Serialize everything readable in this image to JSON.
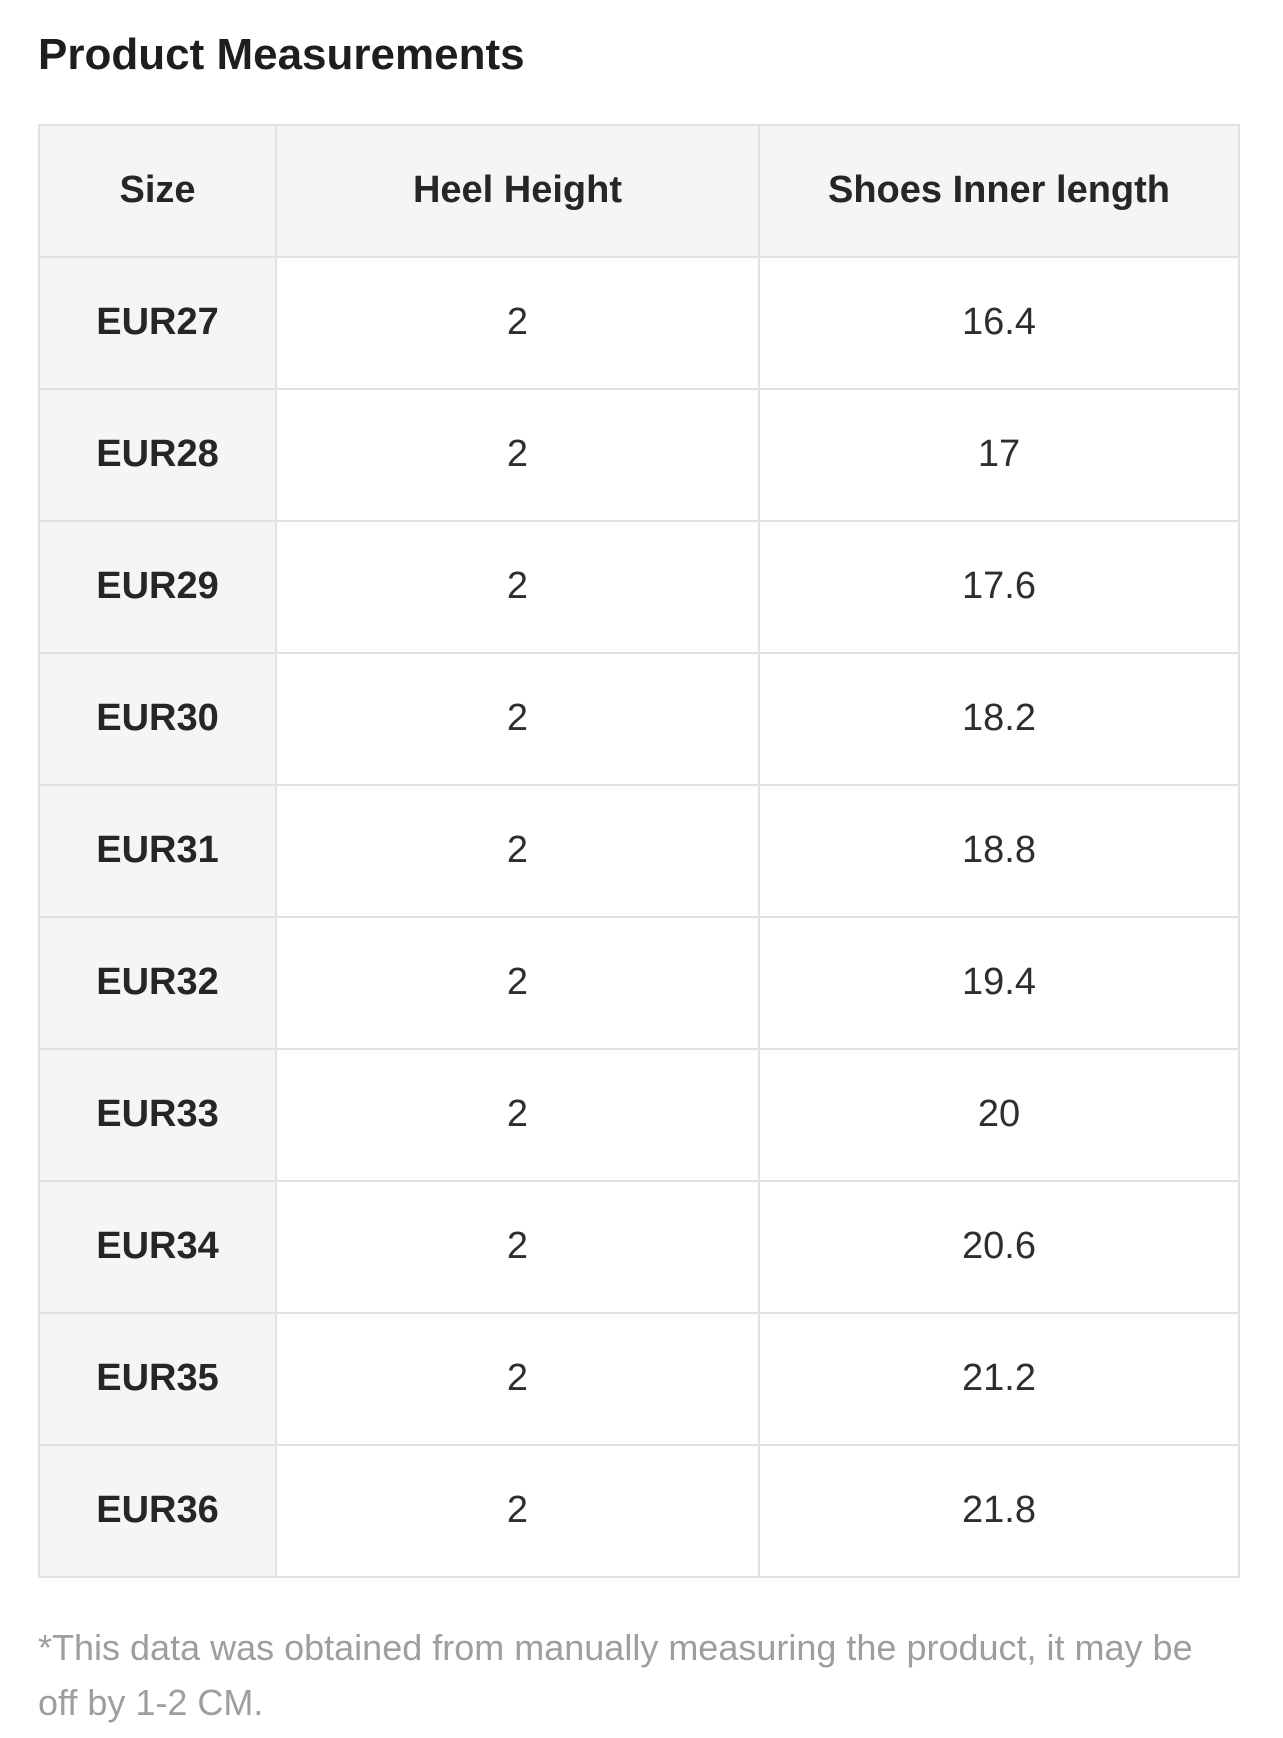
{
  "page": {
    "title": "Product Measurements",
    "footnote": "*This data was obtained from manually measuring the product, it may be off by 1-2 CM."
  },
  "measurements_table": {
    "columns": [
      "Size",
      "Heel Height",
      "Shoes Inner length"
    ],
    "rows": [
      {
        "size": "EUR27",
        "heel_height": "2",
        "inner_length": "16.4"
      },
      {
        "size": "EUR28",
        "heel_height": "2",
        "inner_length": "17"
      },
      {
        "size": "EUR29",
        "heel_height": "2",
        "inner_length": "17.6"
      },
      {
        "size": "EUR30",
        "heel_height": "2",
        "inner_length": "18.2"
      },
      {
        "size": "EUR31",
        "heel_height": "2",
        "inner_length": "18.8"
      },
      {
        "size": "EUR32",
        "heel_height": "2",
        "inner_length": "19.4"
      },
      {
        "size": "EUR33",
        "heel_height": "2",
        "inner_length": "20"
      },
      {
        "size": "EUR34",
        "heel_height": "2",
        "inner_length": "20.6"
      },
      {
        "size": "EUR35",
        "heel_height": "2",
        "inner_length": "21.2"
      },
      {
        "size": "EUR36",
        "heel_height": "2",
        "inner_length": "21.8"
      }
    ]
  },
  "colors": {
    "header_background": "#f5f5f5",
    "table_border": "#e1e1e1",
    "body_text": "#2e2e2e",
    "footnote_text": "#9e9e9e"
  }
}
